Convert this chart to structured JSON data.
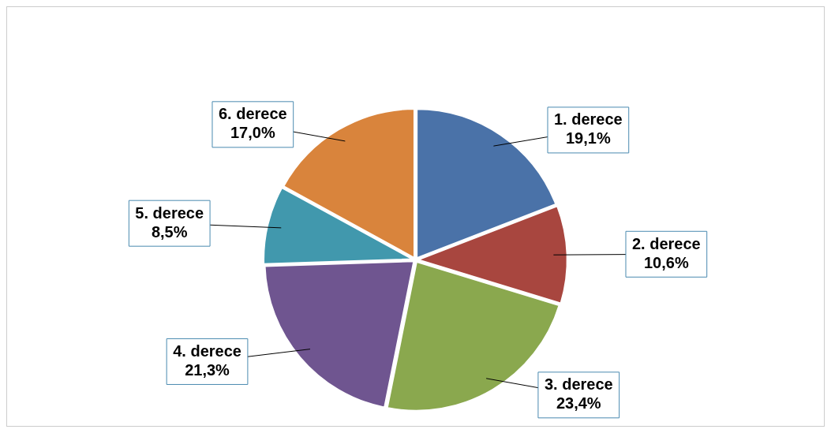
{
  "chart_data": {
    "type": "pie",
    "categories": [
      "1. derece",
      "2. derece",
      "3. derece",
      "4. derece",
      "5. derece",
      "6. derece"
    ],
    "values": [
      19.1,
      10.6,
      23.4,
      21.3,
      8.5,
      17.0
    ],
    "value_labels": [
      "19,1%",
      "10,6%",
      "23,4%",
      "21,3%",
      "8,5%",
      "17,0%"
    ],
    "colors": [
      "#4a72a8",
      "#a8463f",
      "#8aa84e",
      "#6f5590",
      "#4198ad",
      "#d9843c"
    ],
    "legend": false
  }
}
